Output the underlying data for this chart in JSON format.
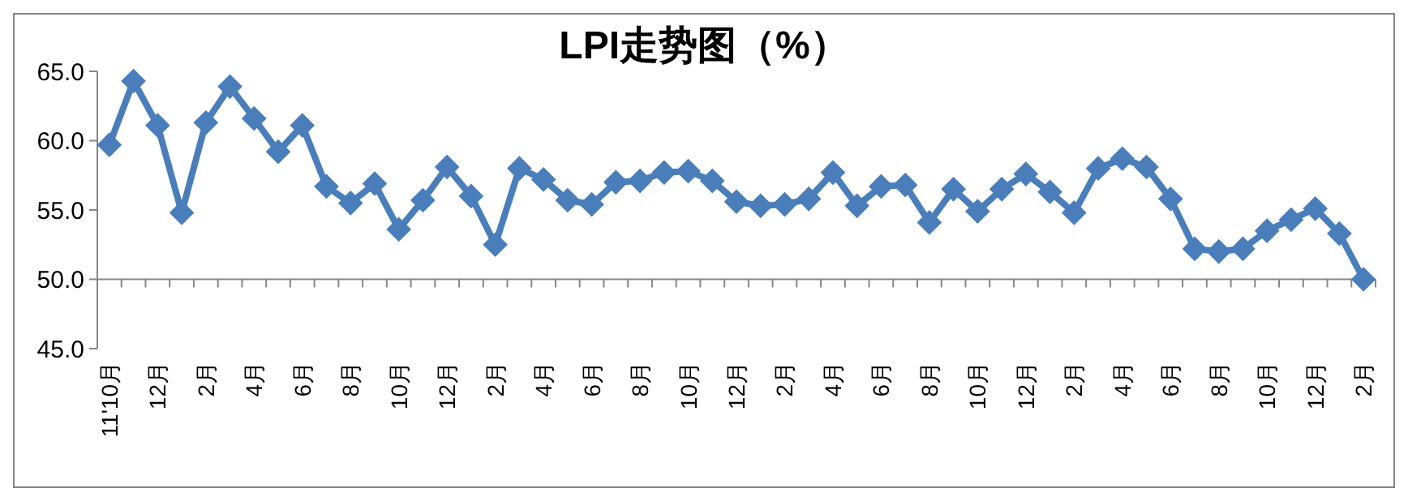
{
  "chart_data": {
    "type": "line",
    "title": "LPI走势图（%）",
    "categories": [
      "11'10月",
      null,
      "12月",
      null,
      "2月",
      null,
      "4月",
      null,
      "6月",
      null,
      "8月",
      null,
      "10月",
      null,
      "12月",
      null,
      "2月",
      null,
      "4月",
      null,
      "6月",
      null,
      "8月",
      null,
      "10月",
      null,
      "12月",
      null,
      "2月",
      null,
      "4月",
      null,
      "6月",
      null,
      "8月",
      null,
      "10月",
      null,
      "12月",
      null,
      "2月",
      null,
      "4月",
      null,
      "6月",
      null,
      "8月",
      null,
      "10月",
      null,
      "12月",
      null,
      "2月"
    ],
    "series": [
      {
        "color": "#4a7ebb",
        "values": [
          59.7,
          64.3,
          61.1,
          54.8,
          61.3,
          63.9,
          61.6,
          59.2,
          61.1,
          56.7,
          55.5,
          56.9,
          53.6,
          55.7,
          58.1,
          56.0,
          52.5,
          58.0,
          57.2,
          55.7,
          55.4,
          57.0,
          57.1,
          57.7,
          57.8,
          57.1,
          55.6,
          55.3,
          55.4,
          55.8,
          57.7,
          55.3,
          56.7,
          56.8,
          54.1,
          56.5,
          54.9,
          56.5,
          57.6,
          56.3,
          54.8,
          58.0,
          58.7,
          58.1,
          55.8,
          52.2,
          52.0,
          52.2,
          53.5,
          54.3,
          55.1,
          53.3,
          50.0
        ]
      }
    ],
    "ylim": [
      45,
      65
    ],
    "yticks": [
      {
        "value": 45,
        "label": "45.0"
      },
      {
        "value": 50,
        "label": "50.0"
      },
      {
        "value": 55,
        "label": "55.0"
      },
      {
        "value": 60,
        "label": "60.0"
      },
      {
        "value": 65,
        "label": "65.0"
      }
    ],
    "ref_lines": [
      {
        "axis": "y",
        "value": 50,
        "color": "#868686"
      }
    ],
    "marker": "diamond",
    "line_style": "solid"
  }
}
